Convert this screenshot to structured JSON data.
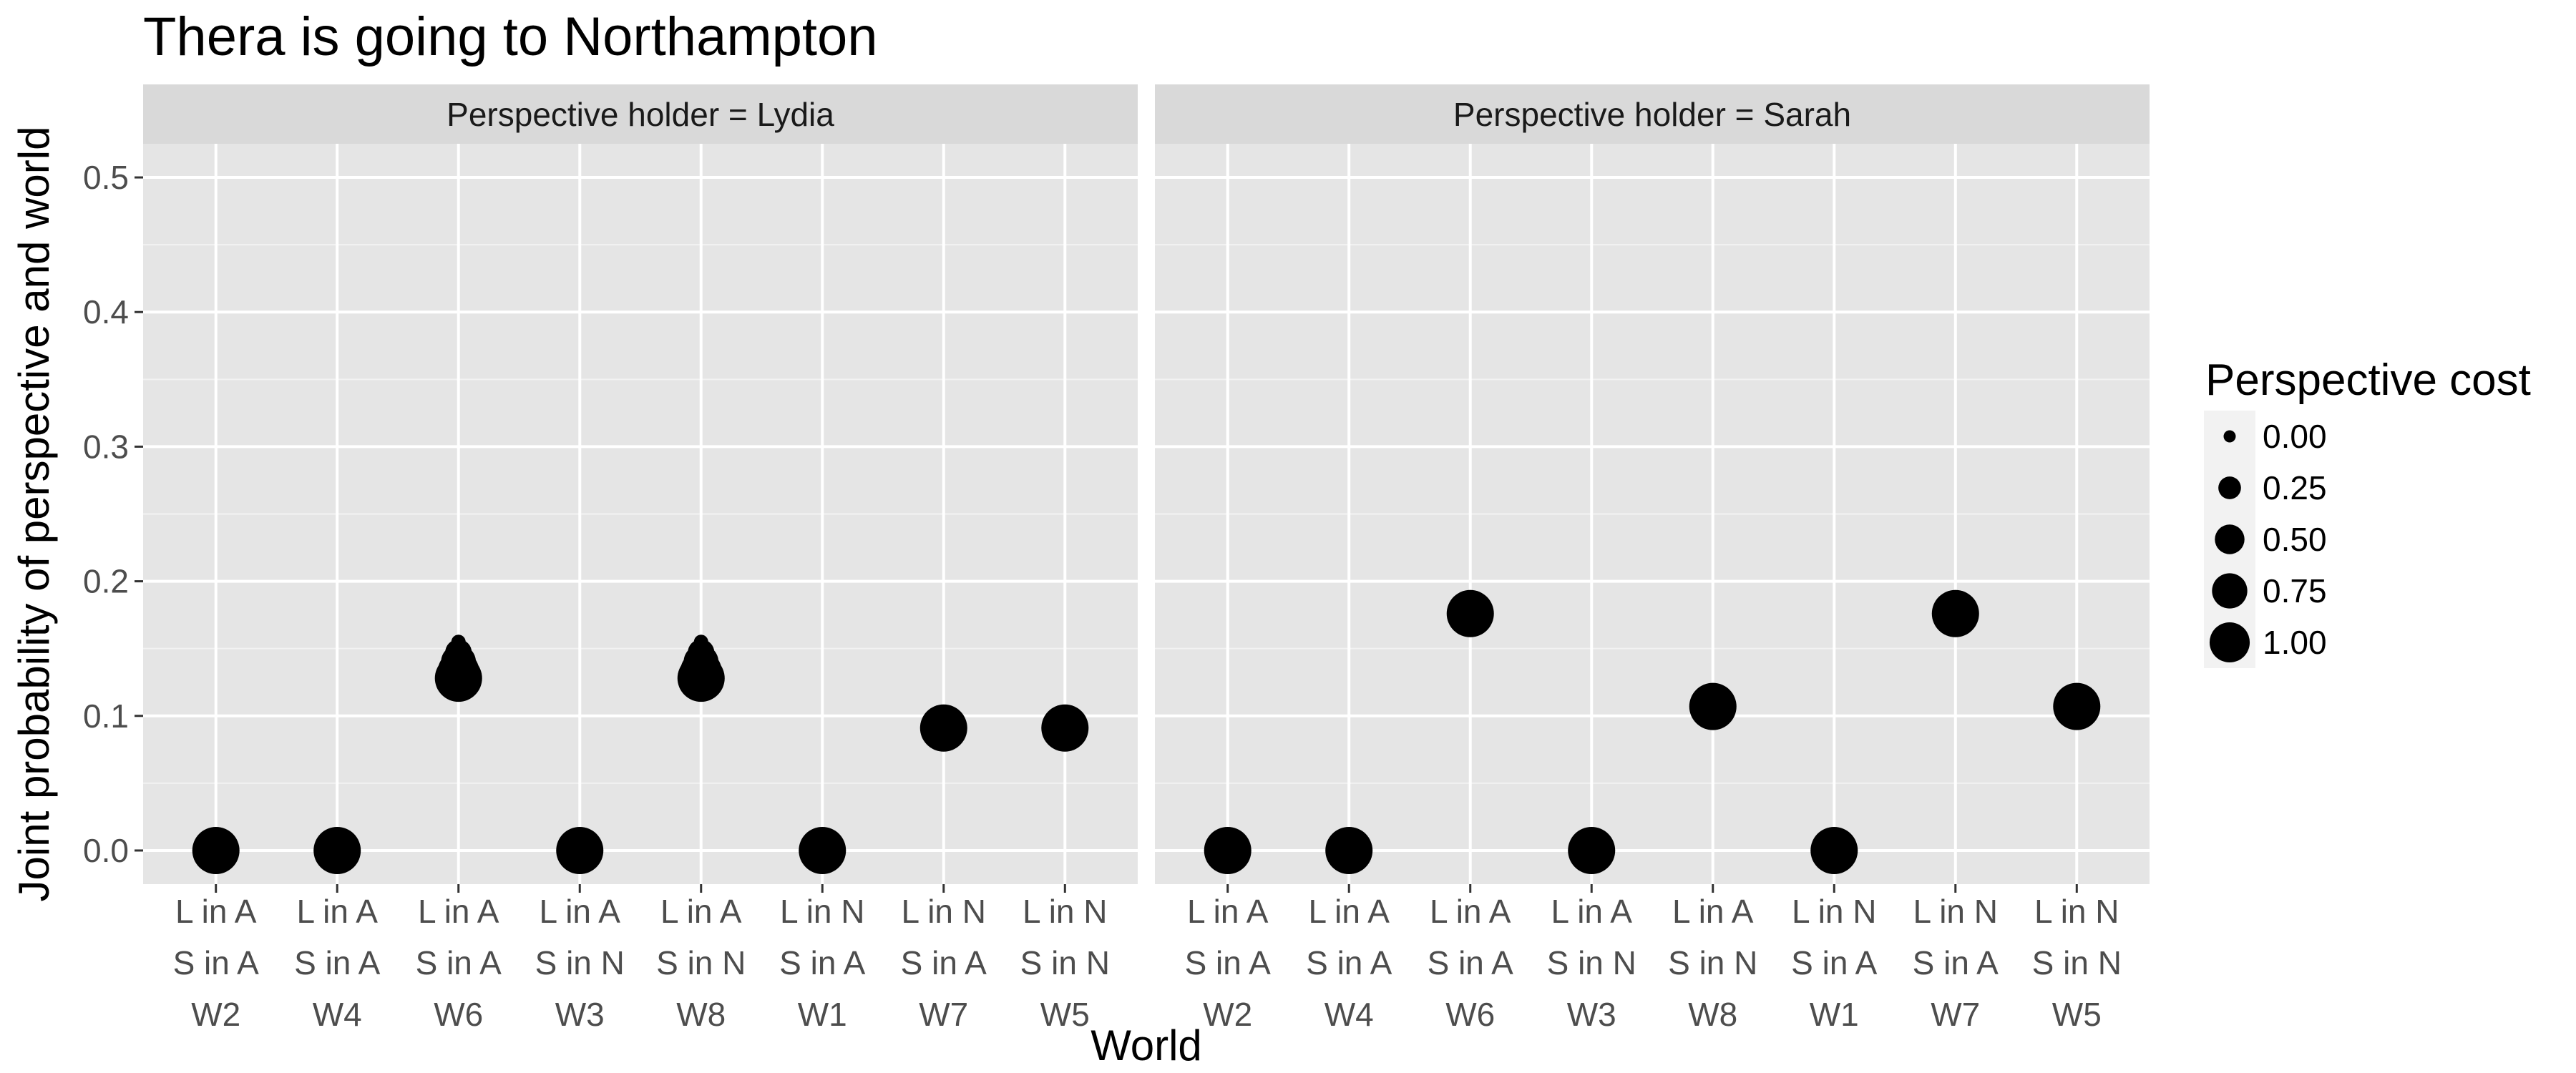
{
  "chart_data": {
    "type": "scatter",
    "title": "Thera is going to Northampton",
    "xlabel": "World",
    "ylabel": "Joint probability of perspective and world",
    "ylim": [
      -0.025,
      0.525
    ],
    "y_ticks": [
      "0.0",
      "0.1",
      "0.2",
      "0.3",
      "0.4",
      "0.5"
    ],
    "y_tick_values": [
      0.0,
      0.1,
      0.2,
      0.3,
      0.4,
      0.5
    ],
    "categories": [
      [
        "L in A",
        "S in A",
        "W2"
      ],
      [
        "L in A",
        "S in A",
        "W4"
      ],
      [
        "L in A",
        "S in A",
        "W6"
      ],
      [
        "L in A",
        "S in N",
        "W3"
      ],
      [
        "L in A",
        "S in N",
        "W8"
      ],
      [
        "L in N",
        "S in A",
        "W1"
      ],
      [
        "L in N",
        "S in A",
        "W7"
      ],
      [
        "L in N",
        "S in N",
        "W5"
      ]
    ],
    "grid": true,
    "legend": {
      "title": "Perspective cost",
      "position": "right",
      "entries": [
        "0.00",
        "0.25",
        "0.50",
        "0.75",
        "1.00"
      ],
      "values": [
        0.0,
        0.25,
        0.5,
        0.75,
        1.0
      ]
    },
    "facets": [
      {
        "label": "Perspective holder = Lydia",
        "points": [
          {
            "x": "W2",
            "values": [
              0.0,
              0.0,
              0.0,
              0.0,
              0.0
            ]
          },
          {
            "x": "W4",
            "values": [
              0.0,
              0.0,
              0.0,
              0.0,
              0.0
            ]
          },
          {
            "x": "W6",
            "values": [
              0.155,
              0.147,
              0.14,
              0.133,
              0.128
            ]
          },
          {
            "x": "W3",
            "values": [
              0.0,
              0.0,
              0.0,
              0.0,
              0.0
            ]
          },
          {
            "x": "W8",
            "values": [
              0.155,
              0.147,
              0.14,
              0.133,
              0.128
            ]
          },
          {
            "x": "W1",
            "values": [
              0.0,
              0.0,
              0.0,
              0.0,
              0.0
            ]
          },
          {
            "x": "W7",
            "values": [
              0.091,
              0.091,
              0.091,
              0.091,
              0.091
            ]
          },
          {
            "x": "W5",
            "values": [
              0.091,
              0.091,
              0.091,
              0.091,
              0.091
            ]
          }
        ]
      },
      {
        "label": "Perspective holder = Sarah",
        "points": [
          {
            "x": "W2",
            "values": [
              0.0,
              0.0,
              0.0,
              0.0,
              0.0
            ]
          },
          {
            "x": "W4",
            "values": [
              0.0,
              0.0,
              0.0,
              0.0,
              0.0
            ]
          },
          {
            "x": "W6",
            "values": [
              0.166,
              0.169,
              0.172,
              0.174,
              0.176
            ]
          },
          {
            "x": "W3",
            "values": [
              0.0,
              0.0,
              0.0,
              0.0,
              0.0
            ]
          },
          {
            "x": "W8",
            "values": [
              0.103,
              0.104,
              0.105,
              0.106,
              0.107
            ]
          },
          {
            "x": "W1",
            "values": [
              0.0,
              0.0,
              0.0,
              0.0,
              0.0
            ]
          },
          {
            "x": "W7",
            "values": [
              0.166,
              0.169,
              0.172,
              0.174,
              0.176
            ]
          },
          {
            "x": "W5",
            "values": [
              0.103,
              0.104,
              0.105,
              0.106,
              0.107
            ]
          }
        ]
      }
    ]
  }
}
